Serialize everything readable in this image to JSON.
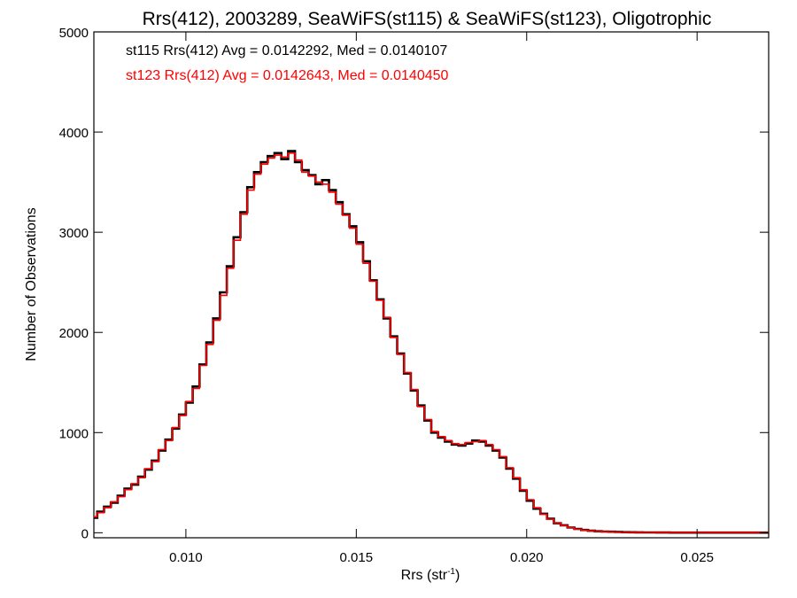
{
  "chart_data": {
    "type": "line",
    "title": "Rrs(412), 2003289, SeaWiFS(st115) & SeaWiFS(st123), Oligotrophic",
    "xlabel_base": "Rrs (str",
    "xlabel_exp": "-1",
    "xlabel_close": ")",
    "ylabel": "Number of Observations",
    "xlim": [
      0.0073,
      0.0271
    ],
    "ylim": [
      -50,
      5000
    ],
    "x_ticks": [
      0.01,
      0.015,
      0.02,
      0.025
    ],
    "x_tick_labels": [
      "0.010",
      "0.015",
      "0.020",
      "0.025"
    ],
    "y_ticks": [
      0,
      1000,
      2000,
      3000,
      4000,
      5000
    ],
    "y_tick_labels": [
      "0",
      "1000",
      "2000",
      "3000",
      "4000",
      "5000"
    ],
    "grid": false,
    "annotations": [
      {
        "text": "st115 Rrs(412) Avg = 0.0142292, Med = 0.0140107",
        "color": "#000000"
      },
      {
        "text": "st123 Rrs(412) Avg = 0.0142643, Med = 0.0140450",
        "color": "#ff0000"
      }
    ],
    "series": [
      {
        "color": "#000000",
        "x": [
          0.0073,
          0.0075,
          0.0077,
          0.0079,
          0.0081,
          0.0083,
          0.0085,
          0.0087,
          0.0089,
          0.0091,
          0.0093,
          0.0095,
          0.0097,
          0.0099,
          0.0101,
          0.0103,
          0.0105,
          0.0107,
          0.0109,
          0.0111,
          0.0113,
          0.0115,
          0.0117,
          0.0119,
          0.0121,
          0.0123,
          0.0125,
          0.0127,
          0.0129,
          0.0131,
          0.0133,
          0.0135,
          0.0137,
          0.0139,
          0.0141,
          0.0143,
          0.0145,
          0.0147,
          0.0149,
          0.0151,
          0.0153,
          0.0155,
          0.0157,
          0.0159,
          0.0161,
          0.0163,
          0.0165,
          0.0167,
          0.0169,
          0.0171,
          0.0173,
          0.0175,
          0.0177,
          0.0179,
          0.0181,
          0.0183,
          0.0185,
          0.0187,
          0.0189,
          0.0191,
          0.0193,
          0.0195,
          0.0197,
          0.0199,
          0.0201,
          0.0203,
          0.0205,
          0.0207,
          0.0209,
          0.0211,
          0.0213,
          0.0215,
          0.0217,
          0.0219,
          0.0221,
          0.0223,
          0.0225,
          0.0227,
          0.0229,
          0.0231,
          0.0233,
          0.0235,
          0.0237,
          0.0239,
          0.0241,
          0.0243,
          0.0245,
          0.0247,
          0.0249,
          0.0251,
          0.0253,
          0.0255,
          0.0257,
          0.0259,
          0.0261,
          0.0263,
          0.0265,
          0.0267,
          0.0269,
          0.0271
        ],
        "values": [
          150,
          210,
          260,
          300,
          370,
          440,
          480,
          560,
          630,
          720,
          820,
          930,
          1040,
          1180,
          1300,
          1460,
          1680,
          1900,
          2140,
          2400,
          2660,
          2950,
          3200,
          3450,
          3600,
          3700,
          3760,
          3790,
          3730,
          3810,
          3700,
          3620,
          3570,
          3480,
          3520,
          3420,
          3300,
          3180,
          3060,
          2900,
          2710,
          2520,
          2330,
          2140,
          1960,
          1790,
          1590,
          1420,
          1270,
          1120,
          1000,
          950,
          910,
          880,
          870,
          890,
          920,
          910,
          870,
          820,
          750,
          640,
          540,
          420,
          320,
          240,
          190,
          140,
          95,
          75,
          52,
          38,
          28,
          20,
          15,
          12,
          10,
          8,
          6,
          5,
          4,
          3,
          3,
          2,
          2,
          1,
          1,
          1,
          1,
          1,
          1,
          1,
          1,
          1,
          1,
          1,
          1,
          1,
          1,
          1
        ]
      },
      {
        "color": "#ff0000",
        "x": [
          0.0073,
          0.0075,
          0.0077,
          0.0079,
          0.0081,
          0.0083,
          0.0085,
          0.0087,
          0.0089,
          0.0091,
          0.0093,
          0.0095,
          0.0097,
          0.0099,
          0.0101,
          0.0103,
          0.0105,
          0.0107,
          0.0109,
          0.0111,
          0.0113,
          0.0115,
          0.0117,
          0.0119,
          0.0121,
          0.0123,
          0.0125,
          0.0127,
          0.0129,
          0.0131,
          0.0133,
          0.0135,
          0.0137,
          0.0139,
          0.0141,
          0.0143,
          0.0145,
          0.0147,
          0.0149,
          0.0151,
          0.0153,
          0.0155,
          0.0157,
          0.0159,
          0.0161,
          0.0163,
          0.0165,
          0.0167,
          0.0169,
          0.0171,
          0.0173,
          0.0175,
          0.0177,
          0.0179,
          0.0181,
          0.0183,
          0.0185,
          0.0187,
          0.0189,
          0.0191,
          0.0193,
          0.0195,
          0.0197,
          0.0199,
          0.0201,
          0.0203,
          0.0205,
          0.0207,
          0.0209,
          0.0211,
          0.0213,
          0.0215,
          0.0217,
          0.0219,
          0.0221,
          0.0223,
          0.0225,
          0.0227,
          0.0229,
          0.0231,
          0.0233,
          0.0235,
          0.0237,
          0.0239,
          0.0241,
          0.0243,
          0.0245,
          0.0247,
          0.0249,
          0.0251,
          0.0253,
          0.0255,
          0.0257,
          0.0259,
          0.0261,
          0.0263,
          0.0265,
          0.0267,
          0.0269,
          0.0271
        ],
        "values": [
          160,
          200,
          250,
          310,
          360,
          430,
          490,
          550,
          640,
          710,
          830,
          920,
          1050,
          1170,
          1310,
          1440,
          1670,
          1880,
          2120,
          2370,
          2640,
          2920,
          3180,
          3420,
          3580,
          3680,
          3740,
          3770,
          3750,
          3790,
          3720,
          3600,
          3560,
          3500,
          3480,
          3400,
          3280,
          3170,
          3040,
          2880,
          2690,
          2510,
          2320,
          2150,
          1950,
          1780,
          1600,
          1430,
          1260,
          1130,
          1010,
          960,
          920,
          890,
          880,
          900,
          910,
          920,
          880,
          830,
          760,
          650,
          550,
          430,
          330,
          250,
          185,
          135,
          98,
          72,
          50,
          36,
          27,
          19,
          14,
          11,
          9,
          7,
          6,
          5,
          4,
          3,
          3,
          2,
          2,
          1,
          1,
          1,
          1,
          1,
          1,
          1,
          1,
          1,
          1,
          1,
          1,
          1,
          1,
          1
        ]
      }
    ]
  }
}
